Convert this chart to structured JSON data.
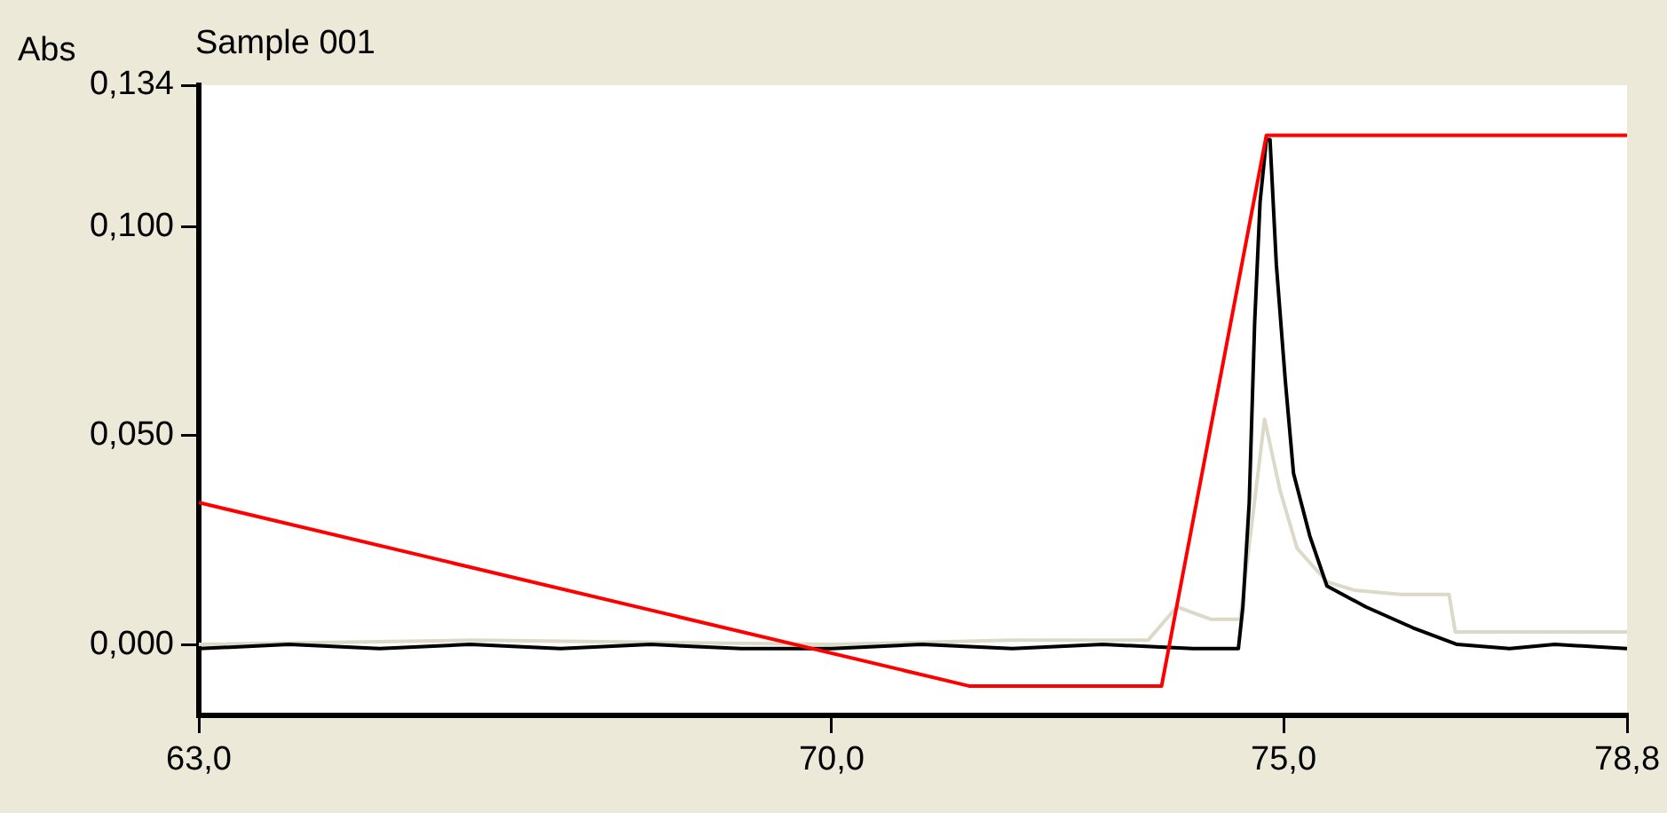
{
  "chart_data": {
    "type": "line",
    "title": "Sample 001",
    "ylabel": "Abs",
    "xlim": [
      63,
      78.8
    ],
    "xticks": [
      {
        "value": 63,
        "label": "63,0"
      },
      {
        "value": 70,
        "label": "70,0"
      },
      {
        "value": 75,
        "label": "75,0"
      },
      {
        "value": 78.8,
        "label": "78,8"
      }
    ],
    "ylim": [
      -0.017,
      0.134
    ],
    "yticks": [
      {
        "value": 0,
        "label": "0,000"
      },
      {
        "value": 0.05,
        "label": "0,050"
      },
      {
        "value": 0.1,
        "label": "0,100"
      },
      {
        "value": 0.134,
        "label": "0,134"
      }
    ],
    "grid": false,
    "legend": false,
    "marker": "none",
    "line_style": "solid",
    "series": [
      {
        "color": "#ff0000",
        "x": [
          63,
          71.53,
          73.65,
          74.81,
          78.8
        ],
        "values": [
          0.034,
          -0.01,
          -0.01,
          0.122,
          0.122
        ]
      },
      {
        "color": "#000000",
        "x": [
          63,
          64,
          65,
          66,
          67,
          68,
          69,
          70,
          71,
          72,
          73,
          74,
          74.5,
          74.55,
          74.62,
          74.68,
          74.74,
          74.81,
          74.85,
          74.92,
          75.02,
          75.11,
          75.29,
          75.48,
          75.91,
          76.43,
          76.92,
          77.5,
          78,
          78.8
        ],
        "values": [
          -0.001,
          0,
          -0.001,
          0,
          -0.001,
          0,
          -0.001,
          -0.001,
          0,
          -0.001,
          0,
          -0.001,
          -0.001,
          0.009,
          0.034,
          0.077,
          0.106,
          0.121,
          0.121,
          0.091,
          0.063,
          0.041,
          0.026,
          0.014,
          0.009,
          0.004,
          0,
          -0.001,
          0,
          -0.001
        ]
      },
      {
        "color": "#ddd9c8",
        "x": [
          63,
          66,
          70,
          72,
          73.5,
          73.82,
          74.2,
          74.52,
          74.79,
          74.96,
          75.15,
          75.48,
          75.78,
          76.3,
          76.83,
          76.9,
          77.5,
          78.2,
          78.8
        ],
        "values": [
          0,
          0.001,
          0,
          0.001,
          0.001,
          0.009,
          0.006,
          0.006,
          0.054,
          0.037,
          0.023,
          0.015,
          0.013,
          0.012,
          0.012,
          0.003,
          0.003,
          0.003,
          0.003
        ]
      }
    ]
  }
}
